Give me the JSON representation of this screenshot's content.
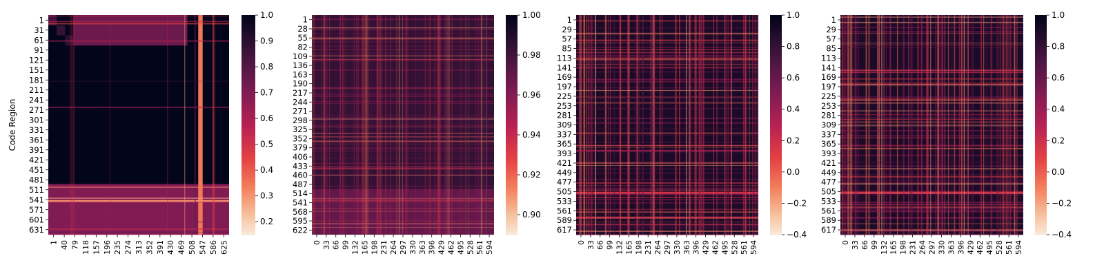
{
  "chart_data": [
    {
      "type": "heatmap",
      "title": "",
      "ylabel": "Code Region",
      "xlabel": "",
      "x_ticks": [
        "1",
        "40",
        "79",
        "118",
        "157",
        "196",
        "235",
        "274",
        "313",
        "352",
        "391",
        "430",
        "469",
        "508",
        "547",
        "586",
        "625"
      ],
      "y_ticks": [
        "1",
        "31",
        "61",
        "91",
        "121",
        "151",
        "181",
        "211",
        "241",
        "271",
        "301",
        "331",
        "361",
        "391",
        "421",
        "451",
        "481",
        "511",
        "541",
        "571",
        "601",
        "631"
      ],
      "n": 650,
      "colorbar": {
        "min": 0.15,
        "max": 1.0,
        "ticks": [
          "1.0",
          "0.9",
          "0.8",
          "0.7",
          "0.6",
          "0.5",
          "0.4",
          "0.3",
          "0.2"
        ],
        "tick_values": [
          1.0,
          0.9,
          0.8,
          0.7,
          0.6,
          0.5,
          0.4,
          0.3,
          0.2
        ]
      },
      "regions": [
        {
          "rows": [
            1,
            30
          ],
          "cols": [
            1,
            30
          ],
          "value": 0.85
        },
        {
          "rows": [
            31,
            60
          ],
          "cols": [
            31,
            60
          ],
          "value": 0.88
        },
        {
          "rows": [
            61,
            90
          ],
          "cols": [
            61,
            90
          ],
          "value": 0.9
        },
        {
          "rows": [
            91,
            500
          ],
          "cols": [
            91,
            500
          ],
          "value": 1.0
        },
        {
          "rows": [
            1,
            90
          ],
          "cols": [
            91,
            500
          ],
          "value": 0.75
        },
        {
          "rows": [
            501,
            650
          ],
          "cols": [
            1,
            650
          ],
          "value": 0.7
        },
        {
          "rows": [
            1,
            650
          ],
          "cols": [
            540,
            555
          ],
          "value": 0.35
        },
        {
          "rows": [
            549,
            553
          ],
          "cols": [
            1,
            650
          ],
          "value": 0.3
        }
      ]
    },
    {
      "type": "heatmap",
      "title": "",
      "ylabel": "",
      "xlabel": "",
      "x_ticks": [
        "0",
        "33",
        "66",
        "99",
        "132",
        "165",
        "198",
        "231",
        "264",
        "297",
        "330",
        "363",
        "396",
        "429",
        "462",
        "495",
        "528",
        "561",
        "594"
      ],
      "y_ticks": [
        "1",
        "28",
        "55",
        "82",
        "109",
        "136",
        "163",
        "190",
        "217",
        "244",
        "271",
        "298",
        "325",
        "352",
        "379",
        "406",
        "433",
        "460",
        "487",
        "514",
        "541",
        "568",
        "595",
        "622"
      ],
      "n": 630,
      "colorbar": {
        "min": 0.89,
        "max": 1.0,
        "ticks": [
          "1.00",
          "0.98",
          "0.96",
          "0.94",
          "0.92",
          "0.90"
        ],
        "tick_values": [
          1.0,
          0.98,
          0.96,
          0.94,
          0.92,
          0.9
        ]
      },
      "regions": [
        {
          "rows": [
            1,
            630
          ],
          "cols": [
            1,
            630
          ],
          "value": 0.985
        },
        {
          "rows": [
            500,
            630
          ],
          "cols": [
            1,
            630
          ],
          "value": 0.97
        }
      ]
    },
    {
      "type": "heatmap",
      "title": "",
      "ylabel": "",
      "xlabel": "",
      "x_ticks": [
        "0",
        "33",
        "66",
        "99",
        "132",
        "165",
        "198",
        "231",
        "264",
        "297",
        "330",
        "363",
        "396",
        "429",
        "462",
        "495",
        "528",
        "561",
        "594"
      ],
      "y_ticks": [
        "1",
        "29",
        "57",
        "85",
        "113",
        "141",
        "169",
        "197",
        "225",
        "253",
        "281",
        "309",
        "337",
        "365",
        "393",
        "421",
        "449",
        "477",
        "505",
        "533",
        "561",
        "589",
        "617"
      ],
      "n": 630,
      "colorbar": {
        "min": -0.4,
        "max": 1.0,
        "ticks": [
          "1.0",
          "0.8",
          "0.6",
          "0.4",
          "0.2",
          "0.0",
          "−0.2",
          "−0.4"
        ],
        "tick_values": [
          1.0,
          0.8,
          0.6,
          0.4,
          0.2,
          0.0,
          -0.2,
          -0.4
        ]
      },
      "regions": [
        {
          "rows": [
            1,
            630
          ],
          "cols": [
            1,
            630
          ],
          "value": 0.9
        },
        {
          "rows": [
            508,
            513
          ],
          "cols": [
            1,
            630
          ],
          "value": 0.2
        }
      ]
    },
    {
      "type": "heatmap",
      "title": "",
      "ylabel": "",
      "xlabel": "",
      "x_ticks": [
        "0",
        "33",
        "66",
        "99",
        "132",
        "165",
        "198",
        "231",
        "264",
        "297",
        "330",
        "363",
        "396",
        "429",
        "462",
        "495",
        "528",
        "561",
        "594"
      ],
      "y_ticks": [
        "1",
        "29",
        "57",
        "85",
        "113",
        "141",
        "169",
        "197",
        "225",
        "253",
        "281",
        "309",
        "337",
        "365",
        "393",
        "421",
        "449",
        "477",
        "505",
        "533",
        "561",
        "589",
        "617"
      ],
      "n": 630,
      "colorbar": {
        "min": -0.4,
        "max": 1.0,
        "ticks": [
          "1.0",
          "0.8",
          "0.6",
          "0.4",
          "0.2",
          "0.0",
          "−0.2",
          "−0.4"
        ],
        "tick_values": [
          1.0,
          0.8,
          0.6,
          0.4,
          0.2,
          0.0,
          -0.2,
          -0.4
        ]
      },
      "regions": [
        {
          "rows": [
            1,
            630
          ],
          "cols": [
            1,
            630
          ],
          "value": 0.9
        },
        {
          "rows": [
            508,
            513
          ],
          "cols": [
            1,
            630
          ],
          "value": 0.2
        }
      ]
    }
  ]
}
